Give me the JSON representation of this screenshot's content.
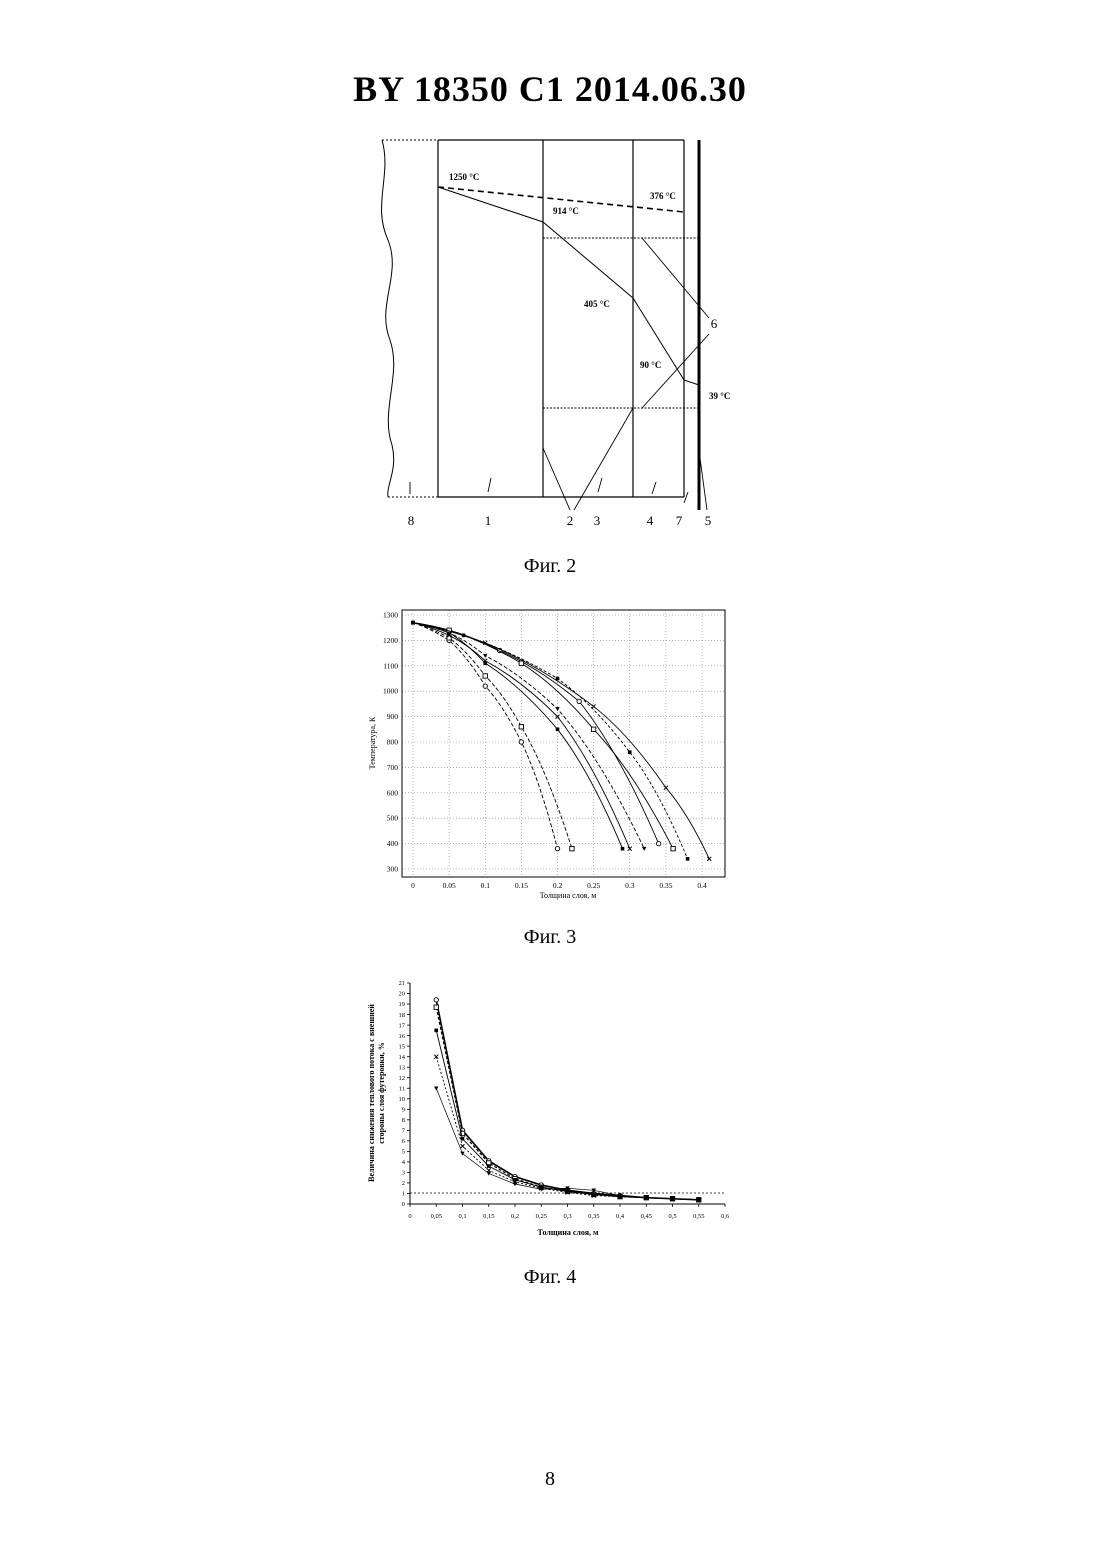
{
  "header": {
    "title": "BY  18350  C1  2014.06.30"
  },
  "fig2": {
    "caption": "Фиг. 2",
    "temperatures": [
      "1250 °C",
      "376 °C",
      "914 °C",
      "405 °C",
      "90 °C",
      "39 °C"
    ],
    "labels": [
      "8",
      "1",
      "2",
      "3",
      "4",
      "7",
      "5",
      "6"
    ]
  },
  "fig3": {
    "caption": "Фиг. 3",
    "ylabel": "Температура, К",
    "xlabel": "Толщина слоя, м",
    "x_ticks": [
      "0",
      "0.05",
      "0.1",
      "0.15",
      "0.2",
      "0.25",
      "0.3",
      "0.35",
      "0.4"
    ],
    "y_ticks": [
      "300",
      "400",
      "500",
      "600",
      "700",
      "800",
      "900",
      "1000",
      "1100",
      "1200",
      "1300"
    ]
  },
  "fig4": {
    "caption": "Фиг. 4",
    "ylabel_line1": "Величина снижения теплового потока с внешней",
    "ylabel_line2": "стороны слоя футеровки, %",
    "xlabel": "Толщина слоя, м",
    "x_ticks": [
      "0",
      "0,05",
      "0,1",
      "0,15",
      "0,2",
      "0,25",
      "0,3",
      "0,35",
      "0,4",
      "0,45",
      "0,5",
      "0,55",
      "0,6"
    ],
    "y_ticks": [
      "0",
      "1",
      "2",
      "3",
      "4",
      "5",
      "6",
      "7",
      "8",
      "9",
      "10",
      "11",
      "12",
      "13",
      "14",
      "15",
      "16",
      "17",
      "18",
      "19",
      "20",
      "21"
    ]
  },
  "page_number": "8",
  "chart_data": [
    {
      "type": "line",
      "xlabel": "Толщина слоя, м",
      "ylabel": "Температура, К",
      "xlim": [
        0,
        0.42
      ],
      "ylim": [
        300,
        1300
      ],
      "grid": true,
      "series": [
        {
          "values": [
            [
              0,
              1270
            ],
            [
              0.05,
              1200
            ],
            [
              0.1,
              1020
            ],
            [
              0.15,
              800
            ],
            [
              0.2,
              380
            ]
          ]
        },
        {
          "values": [
            [
              0,
              1270
            ],
            [
              0.05,
              1210
            ],
            [
              0.1,
              1060
            ],
            [
              0.15,
              860
            ],
            [
              0.22,
              380
            ]
          ]
        },
        {
          "values": [
            [
              0,
              1270
            ],
            [
              0.05,
              1230
            ],
            [
              0.1,
              1110
            ],
            [
              0.2,
              850
            ],
            [
              0.29,
              380
            ]
          ]
        },
        {
          "values": [
            [
              0,
              1270
            ],
            [
              0.05,
              1220
            ],
            [
              0.1,
              1120
            ],
            [
              0.2,
              900
            ],
            [
              0.3,
              380
            ]
          ]
        },
        {
          "values": [
            [
              0,
              1270
            ],
            [
              0.05,
              1230
            ],
            [
              0.1,
              1140
            ],
            [
              0.2,
              930
            ],
            [
              0.32,
              380
            ]
          ]
        },
        {
          "values": [
            [
              0,
              1270
            ],
            [
              0.05,
              1240
            ],
            [
              0.12,
              1160
            ],
            [
              0.23,
              960
            ],
            [
              0.34,
              400
            ]
          ]
        },
        {
          "values": [
            [
              0,
              1270
            ],
            [
              0.05,
              1240
            ],
            [
              0.15,
              1110
            ],
            [
              0.25,
              850
            ],
            [
              0.36,
              380
            ]
          ]
        },
        {
          "values": [
            [
              0,
              1270
            ],
            [
              0.07,
              1220
            ],
            [
              0.2,
              1050
            ],
            [
              0.3,
              760
            ],
            [
              0.38,
              340
            ]
          ]
        },
        {
          "values": [
            [
              0,
              1270
            ],
            [
              0.1,
              1190
            ],
            [
              0.25,
              940
            ],
            [
              0.35,
              620
            ],
            [
              0.41,
              340
            ]
          ]
        }
      ]
    },
    {
      "type": "line",
      "xlabel": "Толщина слоя, м",
      "ylabel": "Величина снижения теплового потока с внешней стороны слоя футеровки, %",
      "xlim": [
        0,
        0.6
      ],
      "ylim": [
        0,
        21
      ],
      "series": [
        {
          "values": [
            [
              0.05,
              19.4
            ],
            [
              0.1,
              7.0
            ],
            [
              0.15,
              4.1
            ],
            [
              0.2,
              2.6
            ],
            [
              0.25,
              1.8
            ],
            [
              0.3,
              1.3
            ],
            [
              0.35,
              1.0
            ],
            [
              0.4,
              0.8
            ],
            [
              0.45,
              0.6
            ],
            [
              0.5,
              0.5
            ],
            [
              0.55,
              0.4
            ]
          ]
        },
        {
          "values": [
            [
              0.05,
              18.7
            ],
            [
              0.1,
              6.7
            ],
            [
              0.15,
              3.9
            ],
            [
              0.2,
              2.4
            ],
            [
              0.25,
              1.6
            ],
            [
              0.3,
              1.2
            ],
            [
              0.35,
              0.9
            ],
            [
              0.4,
              0.7
            ],
            [
              0.45,
              0.6
            ],
            [
              0.5,
              0.5
            ],
            [
              0.55,
              0.4
            ]
          ]
        },
        {
          "values": [
            [
              0.05,
              16.5
            ],
            [
              0.1,
              6.2
            ],
            [
              0.15,
              3.6
            ],
            [
              0.2,
              2.3
            ],
            [
              0.25,
              1.6
            ],
            [
              0.3,
              1.2
            ],
            [
              0.35,
              0.9
            ],
            [
              0.4,
              0.7
            ],
            [
              0.45,
              0.6
            ],
            [
              0.5,
              0.5
            ],
            [
              0.55,
              0.4
            ]
          ]
        },
        {
          "values": [
            [
              0.05,
              14.0
            ],
            [
              0.1,
              5.5
            ],
            [
              0.15,
              3.2
            ],
            [
              0.2,
              2.1
            ],
            [
              0.25,
              1.5
            ],
            [
              0.3,
              1.1
            ],
            [
              0.35,
              0.8
            ],
            [
              0.4,
              0.7
            ],
            [
              0.45,
              0.6
            ],
            [
              0.5,
              0.5
            ],
            [
              0.55,
              0.4
            ]
          ]
        },
        {
          "values": [
            [
              0.05,
              11.0
            ],
            [
              0.1,
              4.8
            ],
            [
              0.15,
              2.9
            ],
            [
              0.2,
              1.9
            ],
            [
              0.25,
              1.4
            ],
            [
              0.3,
              1.5
            ],
            [
              0.35,
              1.3
            ],
            [
              0.4,
              0.8
            ],
            [
              0.45,
              0.6
            ],
            [
              0.5,
              0.5
            ],
            [
              0.55,
              0.4
            ]
          ]
        }
      ]
    }
  ]
}
